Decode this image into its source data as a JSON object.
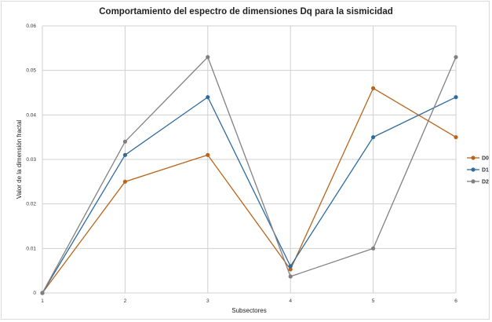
{
  "chart_data": {
    "type": "line",
    "title": "Comportamiento del espectro de dimensiones Dq para la sismicidad",
    "xlabel": "Subsectores",
    "ylabel": "Valor de la dimensión fractal",
    "categories": [
      "1",
      "2",
      "3",
      "4",
      "5",
      "6"
    ],
    "ylim": [
      0,
      0.06
    ],
    "yticks": [
      "0",
      "0.01",
      "0.02",
      "0.03",
      "0.04",
      "0.05",
      "0.06"
    ],
    "grid": true,
    "legend_position": "right",
    "series": [
      {
        "name": "D0",
        "color": "#b8651b",
        "values": [
          0,
          0.025,
          0.031,
          0.0053,
          0.046,
          0.035
        ]
      },
      {
        "name": "D1",
        "color": "#2e6b9e",
        "values": [
          0,
          0.031,
          0.044,
          0.006,
          0.035,
          0.044
        ]
      },
      {
        "name": "D2",
        "color": "#808080",
        "values": [
          0,
          0.034,
          0.053,
          0.0037,
          0.01,
          0.053
        ]
      }
    ]
  }
}
